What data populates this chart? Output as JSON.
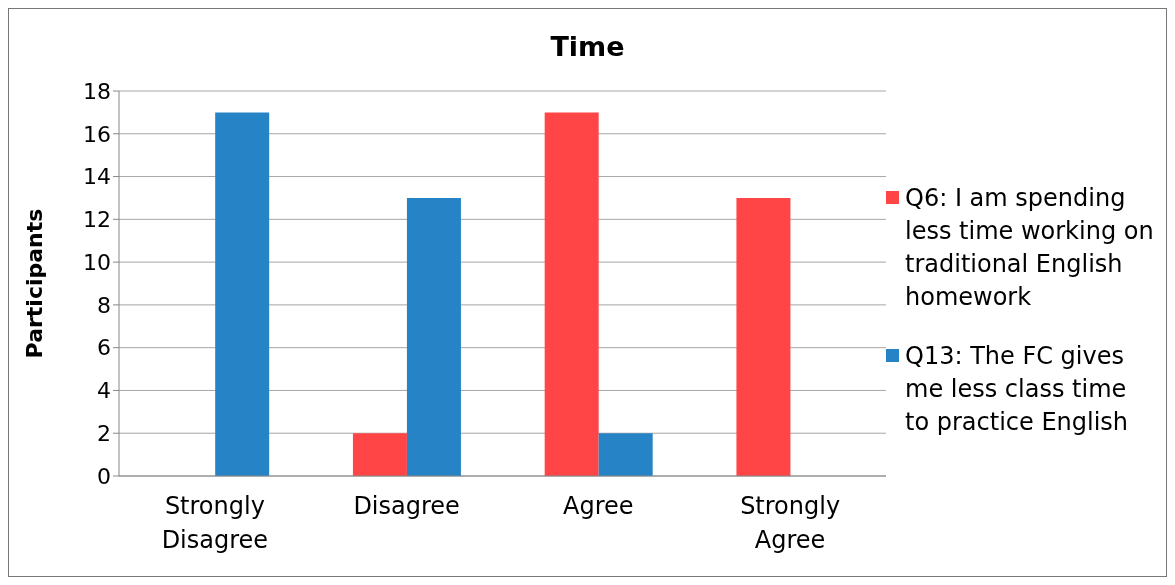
{
  "chart_data": {
    "type": "bar",
    "title": "Time",
    "ylabel": "Participants",
    "categories": [
      "Strongly Disagree",
      "Disagree",
      "Agree",
      "Strongly Agree"
    ],
    "series": [
      {
        "name": "Q6: I am spending less time working on traditional English homework",
        "color": "#ff4545",
        "values": [
          0,
          2,
          17,
          13
        ]
      },
      {
        "name": "Q13: The FC gives me less class time to practice English",
        "color": "#2683c6",
        "values": [
          17,
          13,
          2,
          0
        ]
      }
    ],
    "ylim": [
      0,
      18
    ],
    "yticks": [
      0,
      2,
      4,
      6,
      8,
      10,
      12,
      14,
      16,
      18
    ],
    "grid": "y",
    "legend": "right"
  }
}
